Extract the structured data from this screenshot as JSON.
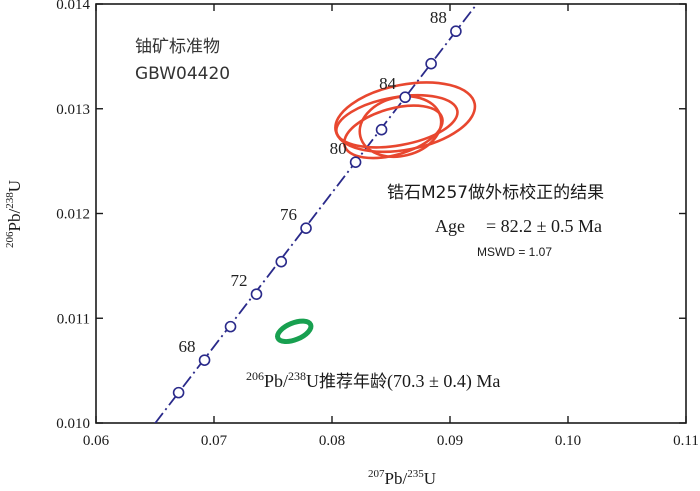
{
  "chart_data": {
    "type": "scatter",
    "subtype": "U-Pb concordia diagram",
    "xlabel": {
      "sup1": "207",
      "base1": "Pb/",
      "sup2": "235",
      "base2": "U"
    },
    "ylabel": {
      "sup1": "206",
      "base1": "Pb/",
      "sup2": "238",
      "base2": "U"
    },
    "xlim": [
      0.06,
      0.11
    ],
    "ylim": [
      0.01,
      0.014
    ],
    "x_ticks": [
      {
        "value": 0.06,
        "label": "0.06"
      },
      {
        "value": 0.07,
        "label": "0.07"
      },
      {
        "value": 0.08,
        "label": "0.08"
      },
      {
        "value": 0.09,
        "label": "0.09"
      },
      {
        "value": 0.1,
        "label": "0.10"
      },
      {
        "value": 0.11,
        "label": "0.11"
      }
    ],
    "y_ticks": [
      {
        "value": 0.01,
        "label": "0.010"
      },
      {
        "value": 0.011,
        "label": "0.011"
      },
      {
        "value": 0.012,
        "label": "0.012"
      },
      {
        "value": 0.013,
        "label": "0.013"
      },
      {
        "value": 0.014,
        "label": "0.014"
      }
    ],
    "concordia": {
      "style": "dash-dot",
      "color": "#2a2a8a",
      "points": [
        {
          "age": 66,
          "x": 0.067,
          "y": 0.01029,
          "label": ""
        },
        {
          "age": 68,
          "x": 0.0692,
          "y": 0.0106,
          "label": "68"
        },
        {
          "age": 70,
          "x": 0.0714,
          "y": 0.01092,
          "label": ""
        },
        {
          "age": 72,
          "x": 0.0736,
          "y": 0.01123,
          "label": "72"
        },
        {
          "age": 74,
          "x": 0.0757,
          "y": 0.01154,
          "label": ""
        },
        {
          "age": 76,
          "x": 0.0778,
          "y": 0.01186,
          "label": "76"
        },
        {
          "age": 80,
          "x": 0.082,
          "y": 0.01249,
          "label": "80"
        },
        {
          "age": 82,
          "x": 0.0842,
          "y": 0.0128,
          "label": ""
        },
        {
          "age": 84,
          "x": 0.0862,
          "y": 0.01311,
          "label": "84"
        },
        {
          "age": 86,
          "x": 0.0884,
          "y": 0.01343,
          "label": ""
        },
        {
          "age": 88,
          "x": 0.0905,
          "y": 0.01374,
          "label": "88"
        }
      ]
    },
    "error_ellipses_sample": {
      "name": "锆石M257做外标校正的结果",
      "color": "#e8472f",
      "ellipses": [
        {
          "cx": 0.0855,
          "cy": 0.01288,
          "rx": 0.0052,
          "ry": 0.00023,
          "angle_deg": -10
        },
        {
          "cx": 0.0858,
          "cy": 0.01283,
          "rx": 0.0035,
          "ry": 0.00028,
          "angle_deg": -14
        },
        {
          "cx": 0.0862,
          "cy": 0.01292,
          "rx": 0.006,
          "ry": 0.00031,
          "angle_deg": -11
        },
        {
          "cx": 0.0852,
          "cy": 0.01278,
          "rx": 0.0043,
          "ry": 0.00022,
          "angle_deg": -16
        }
      ]
    },
    "reference_ellipse": {
      "color": "#18a050",
      "cx": 0.0768,
      "cy": 0.010875,
      "rx": 0.0015,
      "ry": 8e-05,
      "angle_deg": -22
    },
    "annotations": {
      "standard_name_line1": "铀矿标准物",
      "standard_name_line2": "GBW04420",
      "result_title": "锆石M257做外标校正的结果",
      "age_label": "Age",
      "age_value": "= 82.2 ± 0.5 Ma",
      "mswd": "MSWD = 1.07",
      "ref_sup1": "206",
      "ref_base1": "Pb/",
      "ref_sup2": "238",
      "ref_base2": "U",
      "ref_cjk": "推荐年龄",
      "ref_value": "(70.3 ± 0.4) Ma"
    }
  }
}
